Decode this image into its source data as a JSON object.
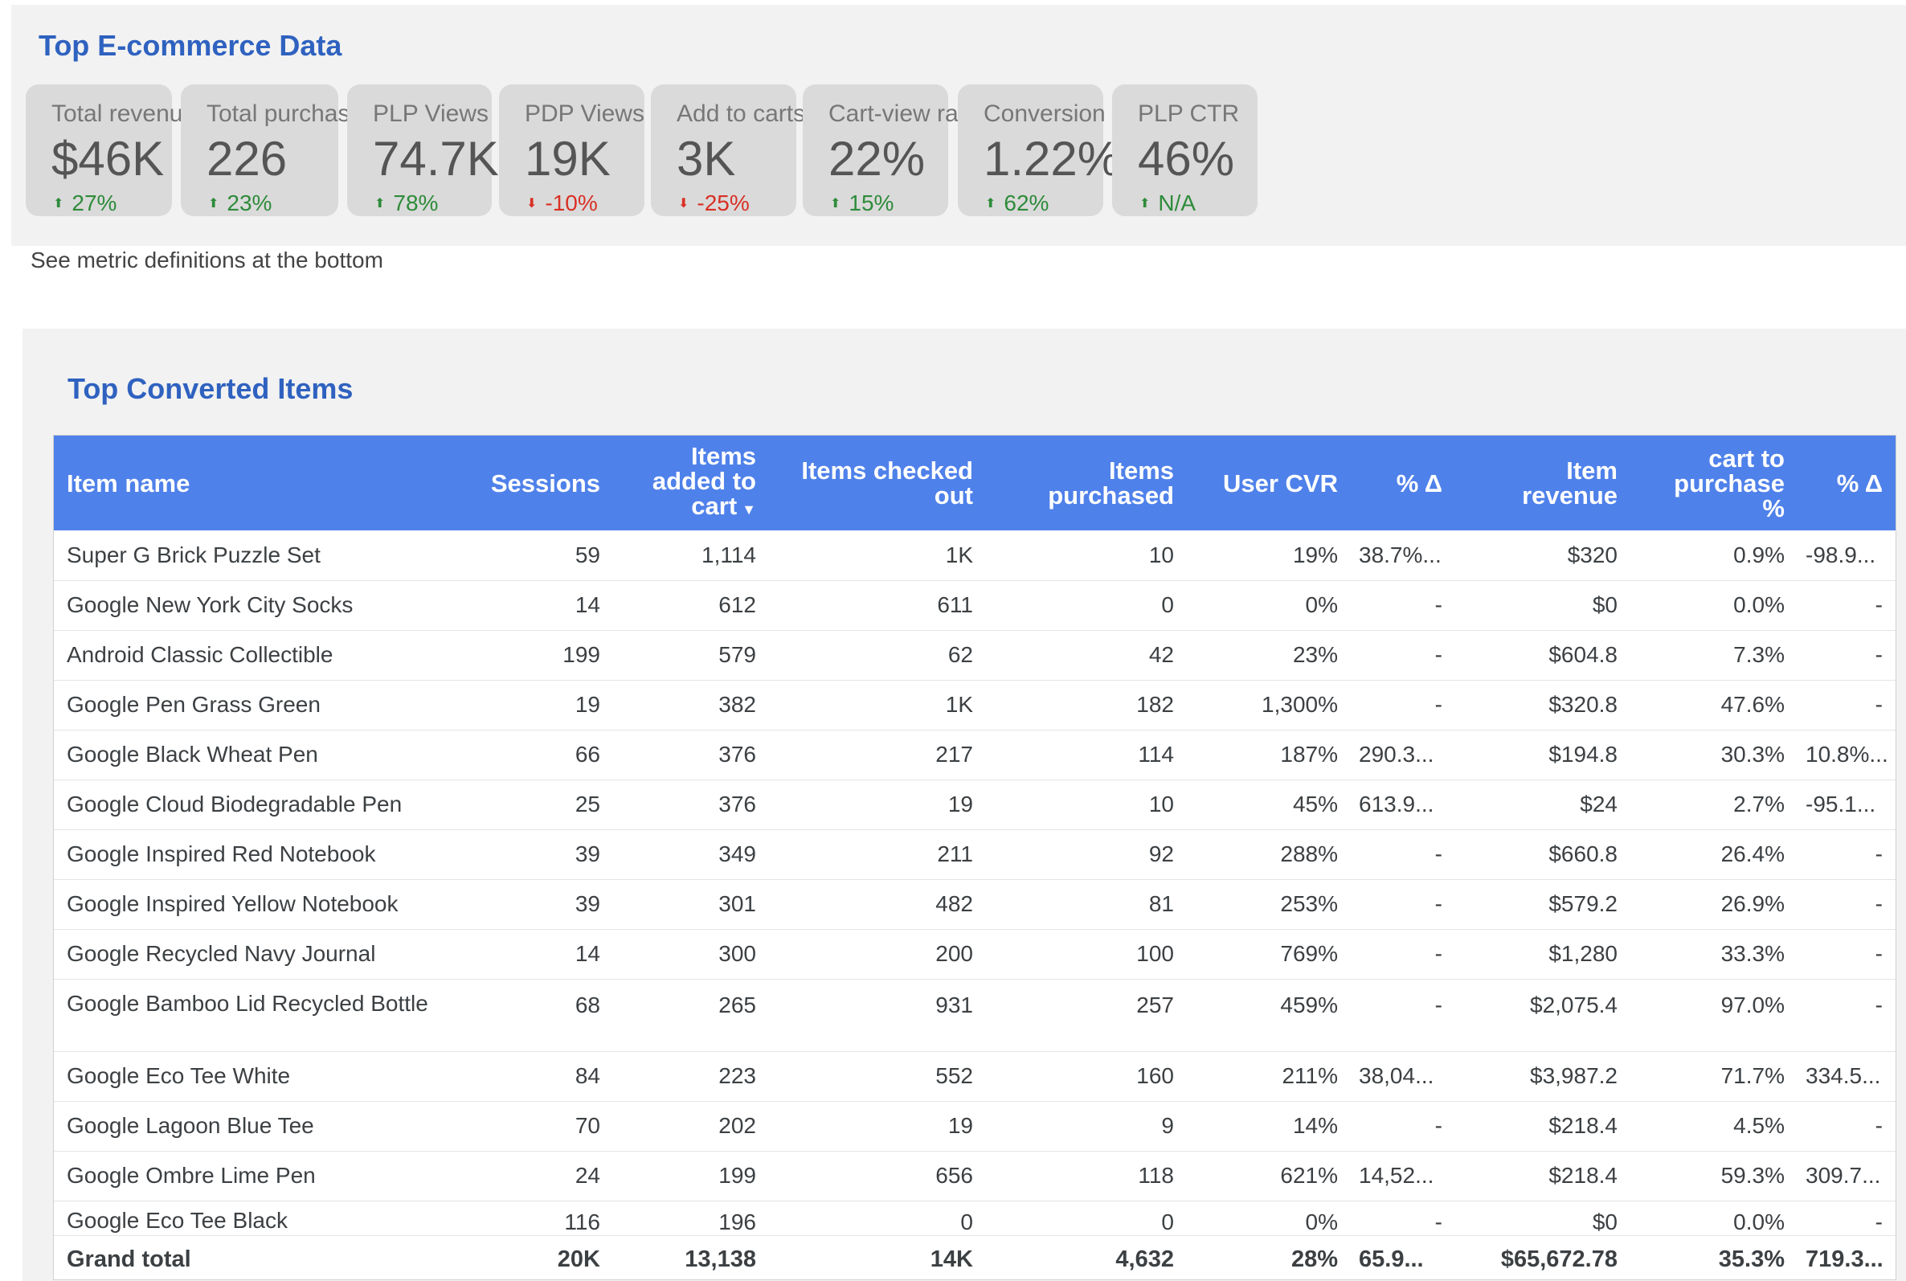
{
  "top_section": {
    "title": "Top E-commerce Data",
    "cards": [
      {
        "label": "Total revenue",
        "value": "$46K",
        "delta": "27%",
        "direction": "up"
      },
      {
        "label": "Total purchasers",
        "value": "226",
        "delta": "23%",
        "direction": "up"
      },
      {
        "label": "PLP Views",
        "value": "74.7K",
        "delta": "78%",
        "direction": "up"
      },
      {
        "label": "PDP Views",
        "value": "19K",
        "delta": "-10%",
        "direction": "down"
      },
      {
        "label": "Add to carts",
        "value": "3K",
        "delta": "-25%",
        "direction": "down"
      },
      {
        "label": "Cart-view rate",
        "value": "22%",
        "delta": "15%",
        "direction": "up"
      },
      {
        "label": "Conversion Rate",
        "value": "1.22%",
        "delta": "62%",
        "direction": "up"
      },
      {
        "label": "PLP CTR",
        "value": "46%",
        "delta": "N/A",
        "direction": "up"
      }
    ],
    "note": "See metric definitions at the bottom"
  },
  "colors": {
    "title": "#2f62c0",
    "header_bg": "#4f81ea",
    "delta_up": "#2e8b3a",
    "delta_down": "#d93025"
  },
  "icons": {
    "up": "arrow-up-icon",
    "down": "arrow-down-icon",
    "sort": "sort-descending-icon"
  },
  "table_section": {
    "title": "Top Converted Items",
    "headers": {
      "item_name": "Item name",
      "sessions": "Sessions",
      "added_to_cart_1": "Items",
      "added_to_cart_2": "added to",
      "added_to_cart_3": "cart",
      "checked_out_1": "Items checked",
      "checked_out_2": "out",
      "purchased_1": "Items",
      "purchased_2": "purchased",
      "user_cvr": "User CVR",
      "delta1": "% Δ",
      "revenue_1": "Item",
      "revenue_2": "revenue",
      "c2p_1": "cart to",
      "c2p_2": "purchase",
      "c2p_3": "%",
      "delta2": "% Δ",
      "sort_glyph": "▼"
    },
    "rows": [
      [
        "Super G Brick Puzzle Set",
        "59",
        "1,114",
        "1K",
        "10",
        "19%",
        "38.7%...",
        "$320",
        "0.9%",
        "-98.9..."
      ],
      [
        "Google New York City Socks",
        "14",
        "612",
        "611",
        "0",
        "0%",
        "-",
        "$0",
        "0.0%",
        "-"
      ],
      [
        "Android Classic Collectible",
        "199",
        "579",
        "62",
        "42",
        "23%",
        "-",
        "$604.8",
        "7.3%",
        "-"
      ],
      [
        "Google Pen Grass Green",
        "19",
        "382",
        "1K",
        "182",
        "1,300%",
        "-",
        "$320.8",
        "47.6%",
        "-"
      ],
      [
        "Google Black Wheat Pen",
        "66",
        "376",
        "217",
        "114",
        "187%",
        "290.3...",
        "$194.8",
        "30.3%",
        "10.8%..."
      ],
      [
        "Google Cloud Biodegradable Pen",
        "25",
        "376",
        "19",
        "10",
        "45%",
        "613.9...",
        "$24",
        "2.7%",
        "-95.1..."
      ],
      [
        "Google Inspired Red Notebook",
        "39",
        "349",
        "211",
        "92",
        "288%",
        "-",
        "$660.8",
        "26.4%",
        "-"
      ],
      [
        "Google Inspired Yellow Notebook",
        "39",
        "301",
        "482",
        "81",
        "253%",
        "-",
        "$579.2",
        "26.9%",
        "-"
      ],
      [
        "Google Recycled Navy Journal",
        "14",
        "300",
        "200",
        "100",
        "769%",
        "-",
        "$1,280",
        "33.3%",
        "-"
      ],
      [
        "Google Bamboo Lid Recycled Bottle",
        "68",
        "265",
        "931",
        "257",
        "459%",
        "-",
        "$2,075.4",
        "97.0%",
        "-"
      ],
      [
        "Google Eco Tee White",
        "84",
        "223",
        "552",
        "160",
        "211%",
        "38,04...",
        "$3,987.2",
        "71.7%",
        "334.5..."
      ],
      [
        "Google Lagoon Blue Tee",
        "70",
        "202",
        "19",
        "9",
        "14%",
        "-",
        "$218.4",
        "4.5%",
        "-"
      ],
      [
        "Google Ombre Lime Pen",
        "24",
        "199",
        "656",
        "118",
        "621%",
        "14,52...",
        "$218.4",
        "59.3%",
        "309.7..."
      ],
      [
        "Google Eco Tee Black",
        "116",
        "196",
        "0",
        "0",
        "0%",
        "-",
        "$0",
        "0.0%",
        "-"
      ]
    ],
    "grand_total": [
      "Grand total",
      "20K",
      "13,138",
      "14K",
      "4,632",
      "28%",
      "65.9...",
      "$65,672.78",
      "35.3%",
      "719.3..."
    ]
  }
}
